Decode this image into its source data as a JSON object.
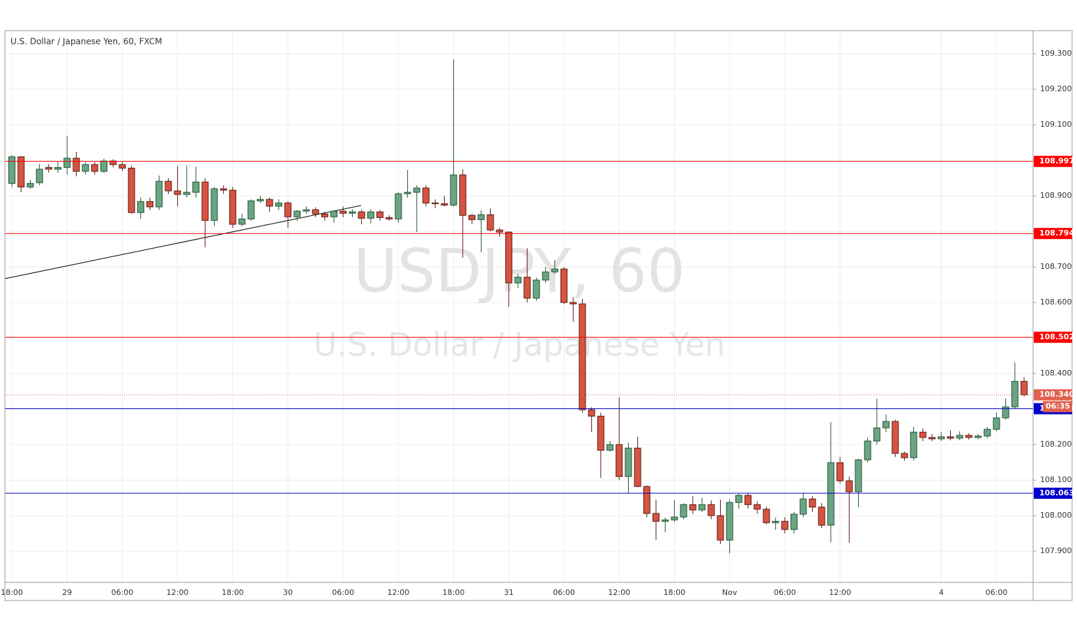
{
  "chart_data": {
    "type": "candlestick",
    "title": "U.S. Dollar / Japanese Yen, 60, FXCM",
    "watermark": "USDJPY, 60",
    "watermark_subtitle": "U.S. Dollar / Japanese Yen",
    "categories": [
      "18:00",
      null,
      null,
      null,
      null,
      null,
      "29",
      null,
      null,
      null,
      null,
      null,
      "06:00",
      null,
      null,
      null,
      null,
      null,
      "12:00",
      null,
      null,
      null,
      null,
      null,
      "18:00",
      null,
      null,
      null,
      null,
      null,
      "30",
      null,
      null,
      null,
      null,
      null,
      "06:00",
      null,
      null,
      null,
      null,
      null,
      "12:00",
      null,
      null,
      null,
      null,
      null,
      "18:00",
      null,
      null,
      null,
      null,
      null,
      "31",
      null,
      null,
      null,
      null,
      null,
      "06:00",
      null,
      null,
      null,
      null,
      null,
      "12:00",
      null,
      null,
      null,
      null,
      null,
      "18:00",
      null,
      null,
      null,
      null,
      null,
      "Nov",
      null,
      null,
      null,
      null,
      null,
      "06:00",
      null,
      null,
      null,
      null,
      null,
      "12:00",
      null,
      null,
      null,
      null,
      null,
      null,
      null,
      null,
      null,
      null,
      "4",
      null,
      null,
      null,
      null,
      null,
      "06:00",
      null,
      null,
      null
    ],
    "open": [
      108.935,
      109.01,
      108.925,
      108.937,
      108.98,
      108.975,
      108.98,
      109.006,
      108.969,
      108.988,
      108.969,
      108.998,
      108.988,
      108.978,
      108.853,
      108.884,
      108.869,
      108.941,
      108.914,
      108.904,
      108.91,
      108.939,
      108.831,
      108.92,
      108.916,
      108.82,
      108.835,
      108.886,
      108.89,
      108.871,
      108.88,
      108.841,
      108.857,
      108.861,
      108.849,
      108.841,
      108.857,
      108.851,
      108.855,
      108.837,
      108.855,
      108.839,
      108.835,
      108.906,
      108.91,
      108.922,
      108.88,
      108.878,
      108.874,
      108.959,
      108.845,
      108.833,
      108.847,
      108.804,
      108.798,
      108.655,
      108.671,
      108.612,
      108.663,
      108.686,
      108.694,
      108.6,
      108.596,
      108.298,
      108.28,
      108.184,
      108.2,
      108.11,
      108.19,
      108.082,
      108.006,
      107.984,
      107.988,
      107.996,
      108.031,
      108.016,
      108.031,
      108.0,
      107.931,
      108.037,
      108.057,
      108.031,
      108.018,
      107.98,
      107.984,
      107.961,
      108.004,
      108.047,
      108.024,
      107.973,
      108.149,
      108.098,
      108.067,
      108.157,
      108.21,
      108.247,
      108.265,
      108.175,
      108.163,
      108.235,
      108.22,
      108.216,
      108.222,
      108.218,
      108.226,
      108.22,
      108.224,
      108.243,
      108.275,
      108.306,
      108.378
    ],
    "high": [
      109.015,
      109.012,
      108.945,
      108.99,
      108.99,
      108.995,
      109.069,
      109.024,
      108.995,
      108.995,
      109.005,
      109.003,
      108.995,
      108.985,
      108.895,
      108.895,
      108.957,
      108.95,
      108.984,
      108.985,
      108.982,
      108.95,
      108.925,
      108.93,
      108.925,
      108.85,
      108.89,
      108.9,
      108.895,
      108.89,
      108.885,
      108.86,
      108.87,
      108.868,
      108.855,
      108.86,
      108.87,
      108.862,
      108.862,
      108.862,
      108.86,
      108.845,
      108.91,
      108.973,
      108.93,
      108.93,
      108.89,
      108.9,
      109.284,
      108.975,
      108.85,
      108.86,
      108.865,
      108.81,
      108.8,
      108.68,
      108.753,
      108.67,
      108.7,
      108.72,
      108.7,
      108.615,
      108.61,
      108.305,
      108.29,
      108.21,
      108.333,
      108.205,
      108.222,
      108.085,
      108.045,
      107.995,
      108.043,
      108.035,
      108.055,
      108.05,
      108.043,
      108.045,
      108.045,
      108.062,
      108.062,
      108.04,
      108.025,
      107.995,
      107.995,
      108.01,
      108.065,
      108.055,
      108.035,
      108.263,
      108.165,
      108.11,
      108.16,
      108.22,
      108.329,
      108.285,
      108.27,
      108.18,
      108.25,
      108.245,
      108.23,
      108.235,
      108.24,
      108.237,
      108.232,
      108.23,
      108.25,
      108.29,
      108.33,
      108.431,
      108.39
    ],
    "low": [
      108.925,
      108.91,
      108.92,
      108.93,
      108.965,
      108.965,
      108.96,
      108.955,
      108.96,
      108.96,
      108.965,
      108.98,
      108.97,
      108.85,
      108.835,
      108.86,
      108.86,
      108.905,
      108.87,
      108.895,
      108.895,
      108.755,
      108.815,
      108.905,
      108.81,
      108.815,
      108.83,
      108.88,
      108.855,
      108.86,
      108.81,
      108.83,
      108.85,
      108.84,
      108.83,
      108.825,
      108.84,
      108.84,
      108.82,
      108.822,
      108.83,
      108.83,
      108.825,
      108.895,
      108.798,
      108.87,
      108.865,
      108.87,
      108.87,
      108.726,
      108.82,
      108.741,
      108.8,
      108.785,
      108.588,
      108.64,
      108.6,
      108.605,
      108.655,
      108.68,
      108.595,
      108.545,
      108.29,
      108.235,
      108.106,
      108.18,
      108.1,
      108.063,
      108.08,
      107.995,
      107.931,
      107.953,
      107.982,
      107.99,
      108.005,
      108.01,
      107.99,
      107.92,
      107.894,
      108.02,
      108.02,
      108.005,
      107.975,
      107.96,
      107.95,
      107.95,
      107.995,
      108.01,
      107.965,
      107.925,
      108.09,
      107.924,
      108.024,
      108.15,
      108.2,
      108.235,
      108.165,
      108.155,
      108.155,
      108.21,
      108.21,
      108.21,
      108.212,
      108.212,
      108.214,
      108.215,
      108.218,
      108.238,
      108.27,
      108.3,
      108.335
    ],
    "close": [
      109.01,
      108.925,
      108.935,
      108.975,
      108.975,
      108.98,
      109.006,
      108.969,
      108.988,
      108.969,
      108.998,
      108.988,
      108.978,
      108.853,
      108.884,
      108.869,
      108.941,
      108.914,
      108.904,
      108.91,
      108.939,
      108.831,
      108.92,
      108.916,
      108.82,
      108.835,
      108.886,
      108.89,
      108.871,
      108.88,
      108.841,
      108.857,
      108.861,
      108.849,
      108.841,
      108.857,
      108.851,
      108.855,
      108.837,
      108.855,
      108.839,
      108.835,
      108.906,
      108.91,
      108.922,
      108.88,
      108.878,
      108.874,
      108.959,
      108.845,
      108.833,
      108.847,
      108.804,
      108.798,
      108.655,
      108.671,
      108.612,
      108.663,
      108.686,
      108.694,
      108.6,
      108.596,
      108.298,
      108.28,
      108.184,
      108.2,
      108.11,
      108.19,
      108.082,
      108.006,
      107.984,
      107.988,
      107.996,
      108.031,
      108.016,
      108.031,
      108.0,
      107.931,
      108.037,
      108.057,
      108.031,
      108.018,
      107.98,
      107.984,
      107.961,
      108.004,
      108.047,
      108.024,
      107.973,
      108.149,
      108.098,
      108.067,
      108.157,
      108.21,
      108.247,
      108.265,
      108.175,
      108.163,
      108.235,
      108.22,
      108.216,
      108.222,
      108.218,
      108.226,
      108.22,
      108.224,
      108.243,
      108.275,
      108.306,
      108.378,
      108.34
    ],
    "up_color": "#6ba583",
    "up_border": "#225437",
    "down_color": "#d75442",
    "down_border": "#5b1a13",
    "xlim": [
      -0.76,
      110.98
    ],
    "ylim": [
      107.812,
      109.365
    ],
    "yticks": [
      {
        "value": 107.9,
        "label": "107.900"
      },
      {
        "value": 108.0,
        "label": "108.000"
      },
      {
        "value": 108.1,
        "label": "108.100"
      },
      {
        "value": 108.2,
        "label": "108.200"
      },
      {
        "value": 108.3,
        "label": "108.300"
      },
      {
        "value": 108.4,
        "label": "108.400"
      },
      {
        "value": 108.5,
        "label": "108.500"
      },
      {
        "value": 108.6,
        "label": "108.600"
      },
      {
        "value": 108.7,
        "label": "108.700"
      },
      {
        "value": 108.8,
        "label": "108.800"
      },
      {
        "value": 108.9,
        "label": "108.900"
      },
      {
        "value": 109.0,
        "label": "109.000"
      },
      {
        "value": 109.1,
        "label": "109.100"
      },
      {
        "value": 109.2,
        "label": "109.200"
      },
      {
        "value": 109.3,
        "label": "109.300"
      }
    ],
    "grid": true,
    "levels": [
      {
        "value": 108.997,
        "color": "#ff0000"
      },
      {
        "value": 108.794,
        "color": "#ff0000"
      },
      {
        "value": 108.502,
        "color": "#ff0000"
      },
      {
        "value": 108.301,
        "color": "#0000cc"
      },
      {
        "value": 108.063,
        "color": "#0000cc"
      }
    ],
    "last_price": {
      "value": 108.34,
      "label": "108.340",
      "color": "#e0604f"
    },
    "countdown": "06:35",
    "trend_line": {
      "x": [
        -0.76,
        37.95
      ],
      "y": [
        108.667,
        108.873
      ],
      "color": "#000000"
    }
  }
}
